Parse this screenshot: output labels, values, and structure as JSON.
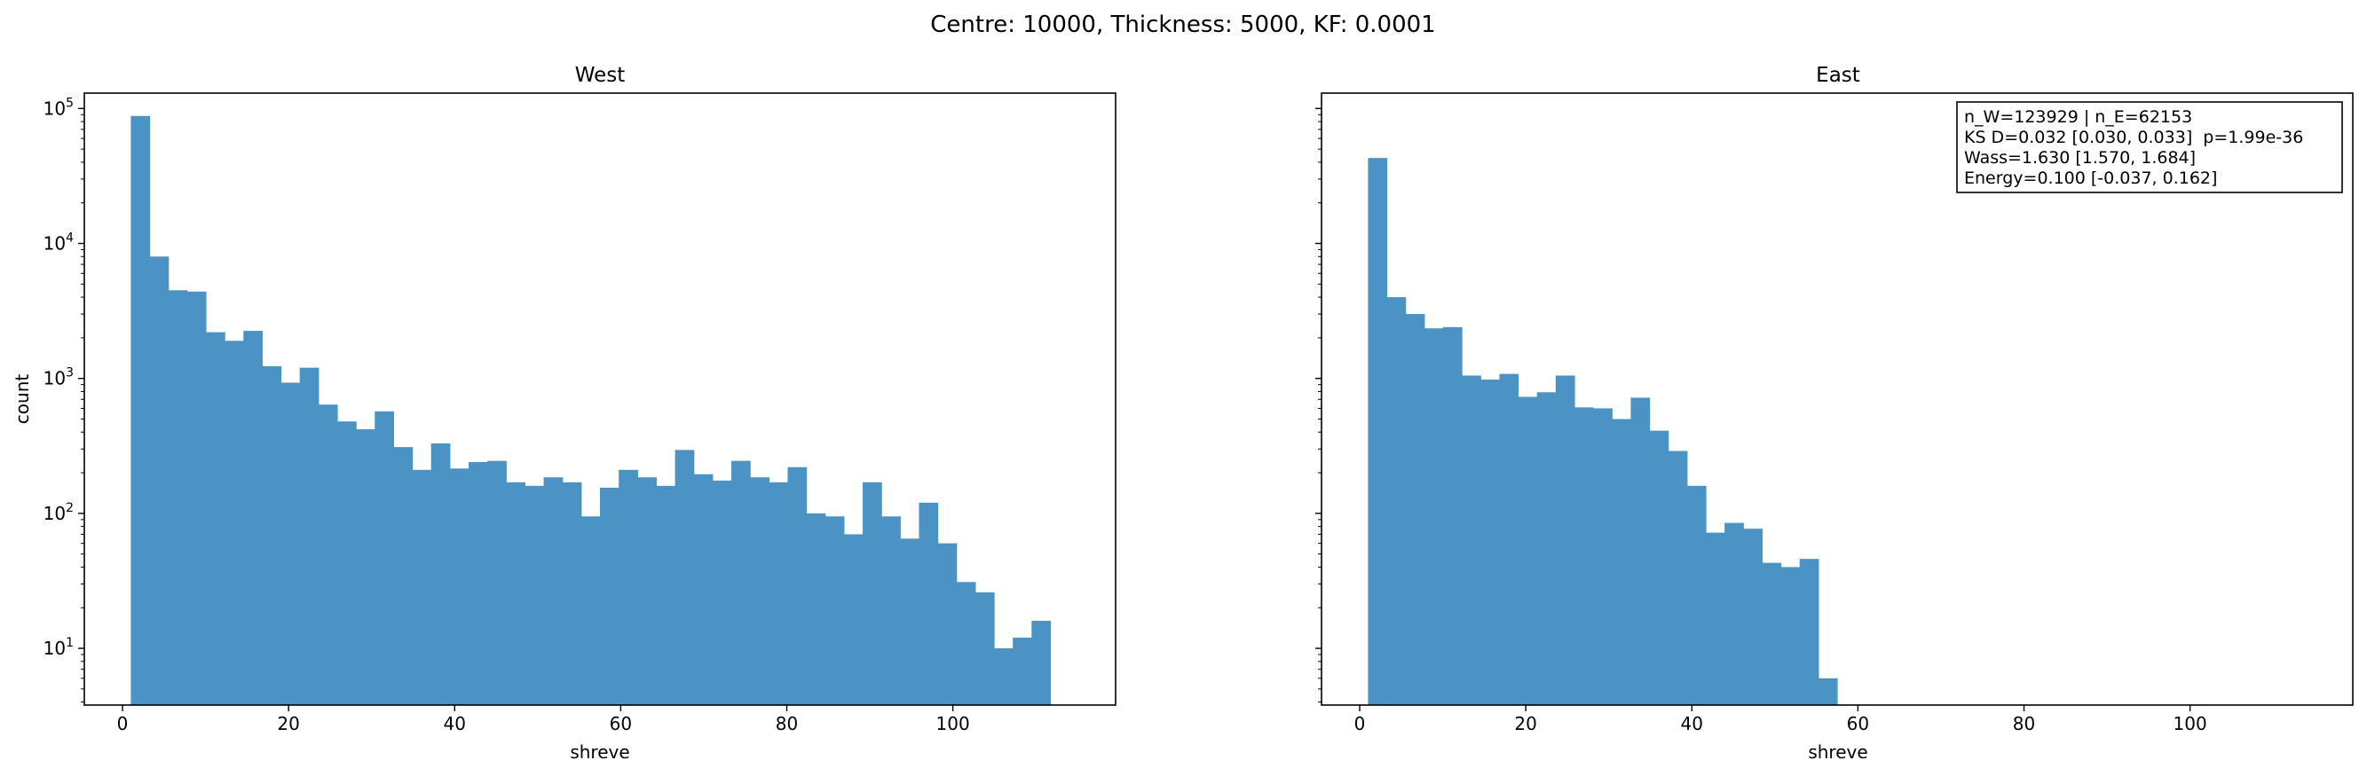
{
  "figure": {
    "suptitle": "Centre: 10000, Thickness: 5000, KF: 0.0001"
  },
  "stats_box": {
    "lines": [
      "n_W=123929 | n_E=62153",
      "KS D=0.032 [0.030, 0.033]  p=1.99e-36",
      "Wass=1.630 [1.570, 1.684]",
      "Energy=0.100 [-0.037, 0.162]"
    ]
  },
  "chart_data": [
    {
      "type": "bar",
      "title": "West",
      "xlabel": "shreve",
      "ylabel": "count",
      "yscale": "log",
      "xlim": [
        -4.6,
        119.6
      ],
      "ylim": [
        3.8,
        130000
      ],
      "xticks": [
        0,
        20,
        40,
        60,
        80,
        100
      ],
      "xtick_labels": [
        "0",
        "20",
        "40",
        "60",
        "80",
        "100"
      ],
      "yticks": [
        10,
        100,
        1000,
        10000,
        100000
      ],
      "ytick_labels": [
        "10^1",
        "10^2",
        "10^3",
        "10^4",
        "10^5"
      ],
      "grid": false,
      "color": "#4c93c5",
      "bin_start": 1,
      "bin_width": 2.26,
      "values": [
        88000,
        8000,
        4500,
        4400,
        2200,
        1900,
        2250,
        1230,
        930,
        1200,
        640,
        480,
        420,
        570,
        310,
        210,
        330,
        215,
        240,
        245,
        170,
        160,
        185,
        170,
        95,
        155,
        210,
        185,
        160,
        295,
        195,
        175,
        245,
        185,
        170,
        220,
        100,
        95,
        70,
        170,
        95,
        65,
        120,
        60,
        31,
        26,
        10,
        12,
        16
      ]
    },
    {
      "type": "bar",
      "title": "East",
      "xlabel": "shreve",
      "ylabel": "",
      "yscale": "log",
      "xlim": [
        -4.6,
        119.6
      ],
      "ylim": [
        3.8,
        130000
      ],
      "xticks": [
        0,
        20,
        40,
        60,
        80,
        100
      ],
      "xtick_labels": [
        "0",
        "20",
        "40",
        "60",
        "80",
        "100"
      ],
      "yticks": [
        10,
        100,
        1000,
        10000,
        100000
      ],
      "ytick_labels": [
        "",
        "",
        "",
        "",
        ""
      ],
      "grid": false,
      "color": "#4c93c5",
      "bin_start": 1,
      "bin_width": 2.26,
      "values": [
        43000,
        4000,
        3000,
        2350,
        2400,
        1050,
        980,
        1080,
        730,
        790,
        1050,
        610,
        600,
        500,
        720,
        410,
        290,
        160,
        72,
        85,
        77,
        43,
        40,
        46,
        6
      ]
    }
  ]
}
